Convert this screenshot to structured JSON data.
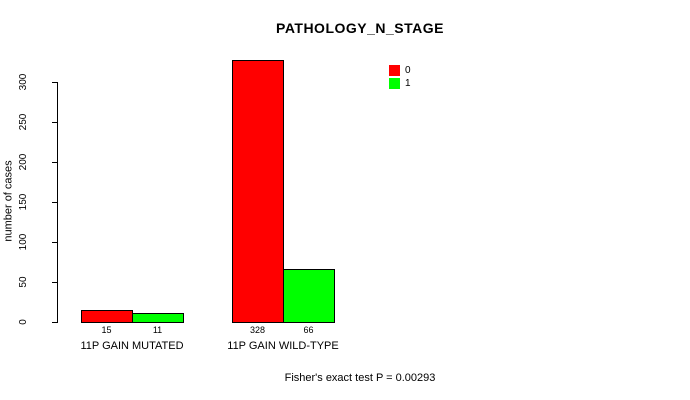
{
  "chart_data": {
    "type": "bar",
    "title": "PATHOLOGY_N_STAGE",
    "ylabel": "number of cases",
    "xlabel": "",
    "categories": [
      "11P GAIN MUTATED",
      "11P GAIN WILD-TYPE"
    ],
    "series": [
      {
        "name": "0",
        "color": "#FF0000",
        "values": [
          15,
          328
        ]
      },
      {
        "name": "1",
        "color": "#00FF00",
        "values": [
          11,
          66
        ]
      }
    ],
    "yticks": [
      0,
      50,
      100,
      150,
      200,
      250,
      300
    ],
    "ylim": [
      0,
      345
    ],
    "grid": false,
    "legend_position": "top-right",
    "annotation": "Fisher's exact test P = 0.00293"
  },
  "colors": {
    "background": "#FFFFFF",
    "axis": "#000000",
    "text": "#000000",
    "bar_border": "#000000"
  }
}
